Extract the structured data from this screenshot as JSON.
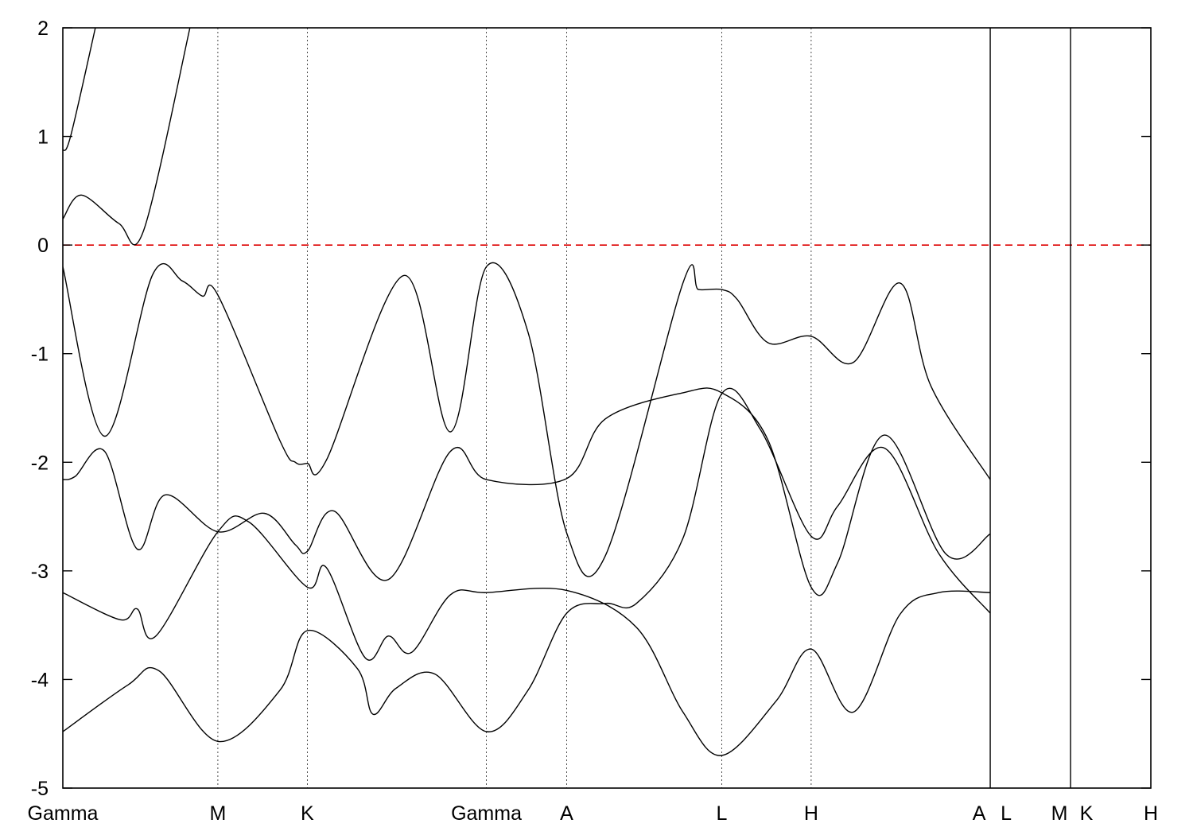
{
  "chart_data": {
    "type": "line",
    "title": "",
    "xlabel": "",
    "ylabel": "",
    "ylim": [
      -5,
      2
    ],
    "yticks": [
      2,
      1,
      0,
      -1,
      -2,
      -3,
      -4,
      -5
    ],
    "ytick_labels": [
      "2",
      "1",
      "0",
      "-1",
      "-2",
      "-3",
      "-4",
      "-5"
    ],
    "fermi_level": 0,
    "fermi_line_color": "#dd0000",
    "line_color": "#000000",
    "high_symmetry_points": [
      {
        "label": "Gamma",
        "x": 0.0
      },
      {
        "label": "M",
        "x": 1.0
      },
      {
        "label": "K",
        "x": 1.577
      },
      {
        "label": "Gamma",
        "x": 2.732
      },
      {
        "label": "A",
        "x": 3.25
      },
      {
        "label": "L",
        "x": 4.25
      },
      {
        "label": "H",
        "x": 4.827
      },
      {
        "label": "A",
        "x": 5.982
      },
      {
        "label": "L",
        "x": 5.982
      },
      {
        "label": "M",
        "x": 6.5
      },
      {
        "label": "K",
        "x": 6.5
      },
      {
        "label": "H",
        "x": 7.018
      }
    ],
    "segment_breaks_at": [
      5.982,
      6.5
    ],
    "x_range": [
      0,
      7.018
    ],
    "series": [
      {
        "points": [
          [
            0,
            0.87
          ],
          [
            0.05,
            1.0
          ],
          [
            0.21,
            2.0
          ]
        ]
      },
      {
        "points": [
          [
            0,
            0.24
          ],
          [
            0.12,
            0.46
          ],
          [
            0.36,
            0.2
          ],
          [
            0.52,
            0.13
          ],
          [
            0.82,
            2.0
          ]
        ]
      },
      {
        "points": [
          [
            0,
            -0.2
          ],
          [
            0.27,
            -1.76
          ],
          [
            0.58,
            -0.27
          ],
          [
            0.77,
            -0.33
          ],
          [
            0.9,
            -0.47
          ],
          [
            1.0,
            -0.46
          ],
          [
            1.4,
            -1.8
          ],
          [
            1.5,
            -2.0
          ],
          [
            1.577,
            -2.01
          ],
          [
            1.7,
            -1.98
          ],
          [
            2.2,
            -0.28
          ],
          [
            2.5,
            -1.72
          ],
          [
            2.732,
            -0.2
          ],
          [
            3.0,
            -0.8
          ],
          [
            3.25,
            -2.65
          ],
          [
            3.5,
            -2.86
          ],
          [
            4.0,
            -0.35
          ],
          [
            4.1,
            -0.41
          ],
          [
            4.25,
            -0.41
          ],
          [
            4.35,
            -0.5
          ],
          [
            4.55,
            -0.9
          ],
          [
            4.827,
            -0.84
          ],
          [
            5.1,
            -1.08
          ],
          [
            5.4,
            -0.35
          ],
          [
            5.6,
            -1.3
          ],
          [
            5.982,
            -2.16
          ]
        ]
      },
      {
        "points": [
          [
            0,
            -2.16
          ],
          [
            0.08,
            -2.13
          ],
          [
            0.27,
            -1.9
          ],
          [
            0.48,
            -2.8
          ],
          [
            0.66,
            -2.3
          ],
          [
            1.0,
            -2.64
          ],
          [
            1.3,
            -2.47
          ],
          [
            1.5,
            -2.76
          ],
          [
            1.577,
            -2.82
          ],
          [
            1.75,
            -2.45
          ],
          [
            2.1,
            -3.08
          ],
          [
            2.5,
            -1.9
          ],
          [
            2.732,
            -2.16
          ],
          [
            3.25,
            -2.15
          ],
          [
            3.5,
            -1.6
          ],
          [
            4.0,
            -1.36
          ],
          [
            4.25,
            -1.36
          ],
          [
            4.55,
            -1.8
          ],
          [
            4.827,
            -3.15
          ],
          [
            5.0,
            -2.92
          ],
          [
            5.3,
            -1.75
          ],
          [
            5.7,
            -2.85
          ],
          [
            5.982,
            -2.66
          ]
        ]
      },
      {
        "points": [
          [
            0,
            -3.2
          ],
          [
            0.37,
            -3.45
          ],
          [
            0.48,
            -3.35
          ],
          [
            0.6,
            -3.6
          ],
          [
            1.0,
            -2.64
          ],
          [
            1.2,
            -2.55
          ],
          [
            1.577,
            -3.15
          ],
          [
            1.7,
            -2.97
          ],
          [
            1.95,
            -3.8
          ],
          [
            2.1,
            -3.6
          ],
          [
            2.25,
            -3.75
          ],
          [
            2.5,
            -3.22
          ],
          [
            2.732,
            -3.2
          ],
          [
            3.25,
            -3.18
          ],
          [
            3.7,
            -3.52
          ],
          [
            4.0,
            -4.3
          ],
          [
            4.25,
            -4.7
          ],
          [
            4.6,
            -4.2
          ],
          [
            4.827,
            -3.72
          ],
          [
            5.1,
            -4.3
          ],
          [
            5.4,
            -3.4
          ],
          [
            5.65,
            -3.2
          ],
          [
            5.982,
            -3.2
          ]
        ]
      },
      {
        "points": [
          [
            0,
            -4.48
          ],
          [
            0.42,
            -4.05
          ],
          [
            0.62,
            -3.92
          ],
          [
            1.0,
            -4.57
          ],
          [
            1.4,
            -4.1
          ],
          [
            1.577,
            -3.55
          ],
          [
            1.9,
            -3.9
          ],
          [
            2.0,
            -4.32
          ],
          [
            2.15,
            -4.08
          ],
          [
            2.4,
            -3.95
          ],
          [
            2.732,
            -4.48
          ],
          [
            3.0,
            -4.1
          ],
          [
            3.25,
            -3.39
          ],
          [
            3.5,
            -3.3
          ],
          [
            3.7,
            -3.3
          ],
          [
            4.0,
            -2.7
          ],
          [
            4.25,
            -1.37
          ],
          [
            4.5,
            -1.7
          ],
          [
            4.827,
            -2.68
          ],
          [
            5.0,
            -2.4
          ],
          [
            5.3,
            -1.87
          ],
          [
            5.65,
            -2.84
          ],
          [
            5.982,
            -3.39
          ]
        ]
      }
    ]
  }
}
